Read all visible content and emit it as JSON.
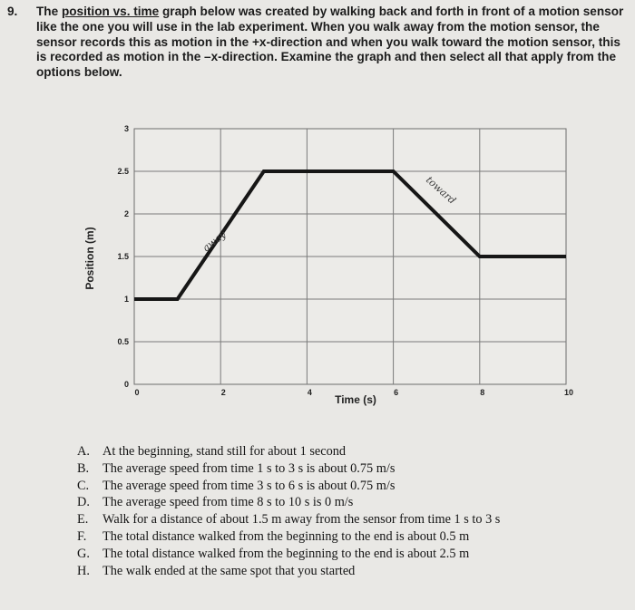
{
  "question": {
    "number": "9.",
    "pre": "The ",
    "title_underlined": "position vs. time",
    "post": " graph below was created by walking back and forth in front of a motion sensor like the one you will use in the lab experiment. When you walk away from the motion sensor, the sensor records this as motion in the +x-direction and when you walk toward the motion sensor, this is recorded as motion in the –x-direction. Examine the graph and then select all that apply from the options below."
  },
  "chart_data": {
    "type": "line",
    "xlabel": "Time (s)",
    "ylabel": "Position (m)",
    "xlim": [
      0,
      10
    ],
    "ylim": [
      0,
      3
    ],
    "x_ticks": [
      "0",
      "2",
      "4",
      "6",
      "8",
      "10"
    ],
    "y_ticks": [
      "0",
      "0.5",
      "1",
      "1.5",
      "2",
      "2.5",
      "3"
    ],
    "grid": true,
    "series": [
      {
        "x": [
          0,
          1,
          3,
          6,
          8,
          10
        ],
        "y": [
          1,
          1,
          2.5,
          2.5,
          1.5,
          1.5
        ],
        "color": "#161616"
      }
    ],
    "annotations": [
      {
        "text": "away",
        "x": 1.9,
        "y": 1.65,
        "rotate": -38
      },
      {
        "text": "toward",
        "x": 7.05,
        "y": 2.25,
        "rotate": 42
      }
    ]
  },
  "options": [
    {
      "letter": "A.",
      "text": "At the beginning, stand still for about 1 second"
    },
    {
      "letter": "B.",
      "text": "The average speed from time 1 s to 3 s is about 0.75 m/s"
    },
    {
      "letter": "C.",
      "text": "The average speed from time 3 s to 6 s is about 0.75 m/s"
    },
    {
      "letter": "D.",
      "text": "The average speed from time 8 s to 10 s is 0 m/s"
    },
    {
      "letter": "E.",
      "text": "Walk for a distance of about 1.5 m  away from the sensor from time 1 s to 3 s"
    },
    {
      "letter": "F.",
      "text": "The total distance walked from the beginning to the end is about 0.5 m"
    },
    {
      "letter": "G.",
      "text": "The total distance walked from the beginning to the end is about 2.5 m"
    },
    {
      "letter": "H.",
      "text": "The walk ended at the same spot that you started"
    }
  ]
}
